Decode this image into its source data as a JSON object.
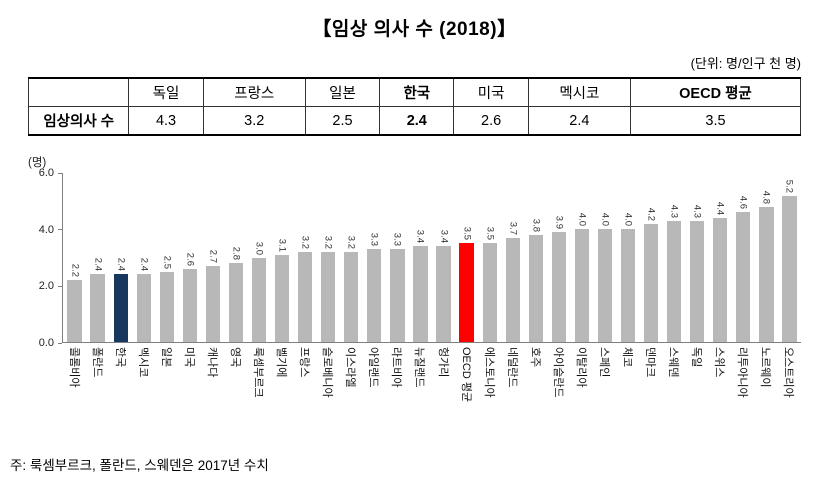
{
  "title": "【임상 의사 수 (2018)】",
  "unit_note": "(단위: 명/인구 천 명)",
  "table": {
    "row_label": "임상의사 수",
    "columns": [
      "독일",
      "프랑스",
      "일본",
      "한국",
      "미국",
      "멕시코",
      "OECD 평균"
    ],
    "values": [
      "4.3",
      "3.2",
      "2.5",
      "2.4",
      "2.6",
      "2.4",
      "3.5"
    ],
    "bold_headers": [
      "한국",
      "OECD 평균"
    ],
    "bold_value_columns": [
      "한국"
    ]
  },
  "chart_data": {
    "type": "bar",
    "title": "임상 의사 수 (2018)",
    "ylabel": "(명)",
    "ylim": [
      0,
      6
    ],
    "yticks": [
      0,
      2,
      4,
      6
    ],
    "grid": false,
    "legend": false,
    "categories": [
      "콜롬비아",
      "폴란드",
      "한국",
      "멕시코",
      "일본",
      "미국",
      "캐나다",
      "영국",
      "룩셈부르크",
      "벨기에",
      "프랑스",
      "슬로베니아",
      "이스라엘",
      "아일랜드",
      "라트비아",
      "뉴질랜드",
      "헝가리",
      "OECD 평균",
      "에스토니아",
      "네덜란드",
      "호주",
      "아이슬란드",
      "이탈리아",
      "스페인",
      "체코",
      "덴마크",
      "스웨덴",
      "독일",
      "스위스",
      "리투아니아",
      "노르웨이",
      "오스트리아"
    ],
    "values": [
      2.2,
      2.4,
      2.4,
      2.4,
      2.5,
      2.6,
      2.7,
      2.8,
      3.0,
      3.1,
      3.2,
      3.2,
      3.2,
      3.3,
      3.3,
      3.4,
      3.4,
      3.5,
      3.5,
      3.7,
      3.8,
      3.9,
      4.0,
      4.0,
      4.0,
      4.2,
      4.3,
      4.3,
      4.4,
      4.6,
      4.8,
      5.2
    ],
    "bar_color_default": "#b8b8b8",
    "highlights": [
      {
        "index": 2,
        "category": "한국",
        "color": "#17375e"
      },
      {
        "index": 17,
        "category": "OECD 평균",
        "color": "#ff0000"
      }
    ]
  },
  "footnote": "주: 룩셈부르크, 폴란드, 스웨덴은 2017년 수치"
}
